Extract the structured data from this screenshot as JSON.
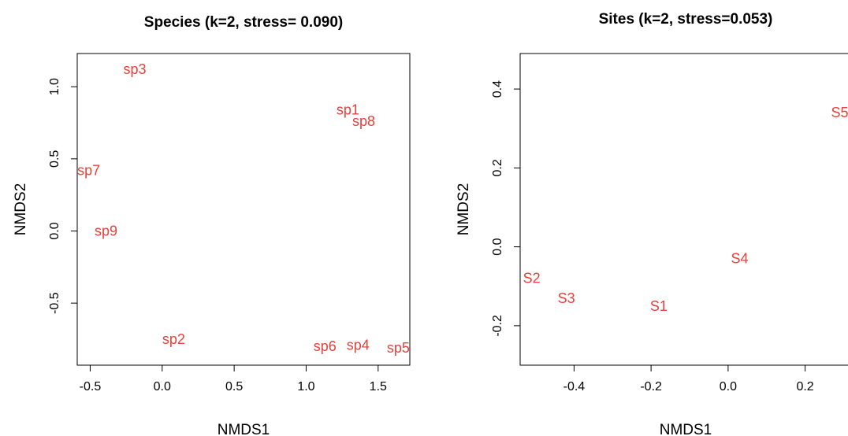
{
  "chart_data": [
    {
      "type": "scatter",
      "title": "Species (k=2, stress= 0.090)",
      "xlabel": "NMDS1",
      "ylabel": "NMDS2",
      "xlim": [
        -0.59,
        1.72
      ],
      "ylim": [
        -0.93,
        1.23
      ],
      "xticks": [
        -0.5,
        0.0,
        0.5,
        1.0,
        1.5
      ],
      "xtick_labels": [
        "-0.5",
        "0.0",
        "0.5",
        "1.0",
        "1.5"
      ],
      "yticks": [
        -0.5,
        0.0,
        0.5,
        1.0
      ],
      "ytick_labels": [
        "-0.5",
        "0.0",
        "0.5",
        "1.0"
      ],
      "label_color": "#e8403a",
      "points": [
        {
          "label": "sp3",
          "x": -0.19,
          "y": 1.12
        },
        {
          "label": "sp1",
          "x": 1.29,
          "y": 0.84
        },
        {
          "label": "sp8",
          "x": 1.4,
          "y": 0.76
        },
        {
          "label": "sp7",
          "x": -0.51,
          "y": 0.42
        },
        {
          "label": "sp9",
          "x": -0.39,
          "y": 0.0
        },
        {
          "label": "sp2",
          "x": 0.08,
          "y": -0.75
        },
        {
          "label": "sp6",
          "x": 1.13,
          "y": -0.8
        },
        {
          "label": "sp4",
          "x": 1.36,
          "y": -0.79
        },
        {
          "label": "sp5",
          "x": 1.64,
          "y": -0.81
        }
      ]
    },
    {
      "type": "scatter",
      "title": "Sites (k=2, stress=0.053)",
      "xlabel": "NMDS1",
      "ylabel": "NMDS2",
      "xlim": [
        -0.54,
        0.34
      ],
      "ylim": [
        -0.3,
        0.49
      ],
      "xticks": [
        -0.4,
        -0.2,
        0.0,
        0.2
      ],
      "xtick_labels": [
        "-0.4",
        "-0.2",
        "0.0",
        "0.2"
      ],
      "yticks": [
        -0.2,
        0.0,
        0.2,
        0.4
      ],
      "ytick_labels": [
        "-0.2",
        "0.0",
        "0.2",
        "0.4"
      ],
      "label_color": "#e8403a",
      "points": [
        {
          "label": "S5",
          "x": 0.29,
          "y": 0.34
        },
        {
          "label": "S4",
          "x": 0.03,
          "y": -0.03
        },
        {
          "label": "S2",
          "x": -0.51,
          "y": -0.08
        },
        {
          "label": "S3",
          "x": -0.42,
          "y": -0.13
        },
        {
          "label": "S1",
          "x": -0.18,
          "y": -0.15
        }
      ]
    }
  ]
}
